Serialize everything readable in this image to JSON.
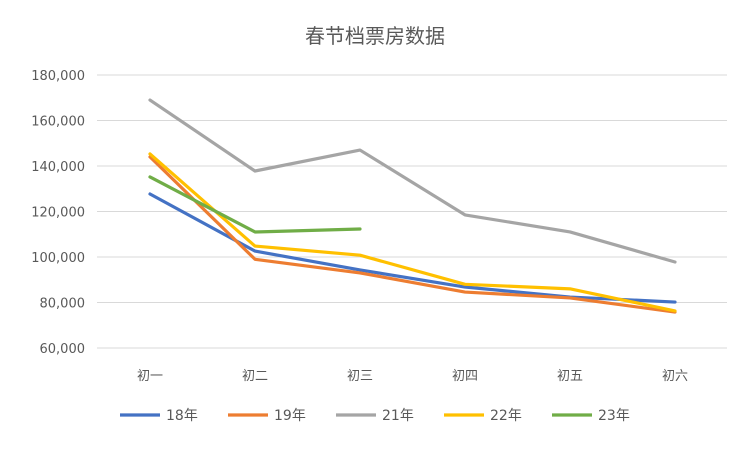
{
  "chart_data": {
    "type": "line",
    "title": "春节档票房数据",
    "xlabel": "",
    "ylabel": "",
    "categories": [
      "初一",
      "初二",
      "初三",
      "初四",
      "初五",
      "初六"
    ],
    "ylim": [
      60000,
      180000
    ],
    "yticks": [
      60000,
      80000,
      100000,
      120000,
      140000,
      160000,
      180000
    ],
    "ytick_labels": [
      "60,000",
      "80,000",
      "100,000",
      "120,000",
      "140,000",
      "160,000",
      "180,000"
    ],
    "grid": true,
    "legend_position": "bottom",
    "series": [
      {
        "name": "18年",
        "color": "#4472C4",
        "values": [
          127700,
          102600,
          94300,
          86800,
          82400,
          80200
        ]
      },
      {
        "name": "19年",
        "color": "#ED7D31",
        "values": [
          144000,
          99000,
          93000,
          84600,
          82000,
          75800
        ]
      },
      {
        "name": "21年",
        "color": "#A5A5A5",
        "values": [
          169000,
          137800,
          147000,
          118500,
          111000,
          97800
        ]
      },
      {
        "name": "22年",
        "color": "#FFC000",
        "values": [
          145300,
          104800,
          100800,
          88000,
          86000,
          76300
        ]
      },
      {
        "name": "23年",
        "color": "#70AD47",
        "values": [
          135200,
          111000,
          112300,
          null,
          null,
          null
        ]
      }
    ]
  }
}
